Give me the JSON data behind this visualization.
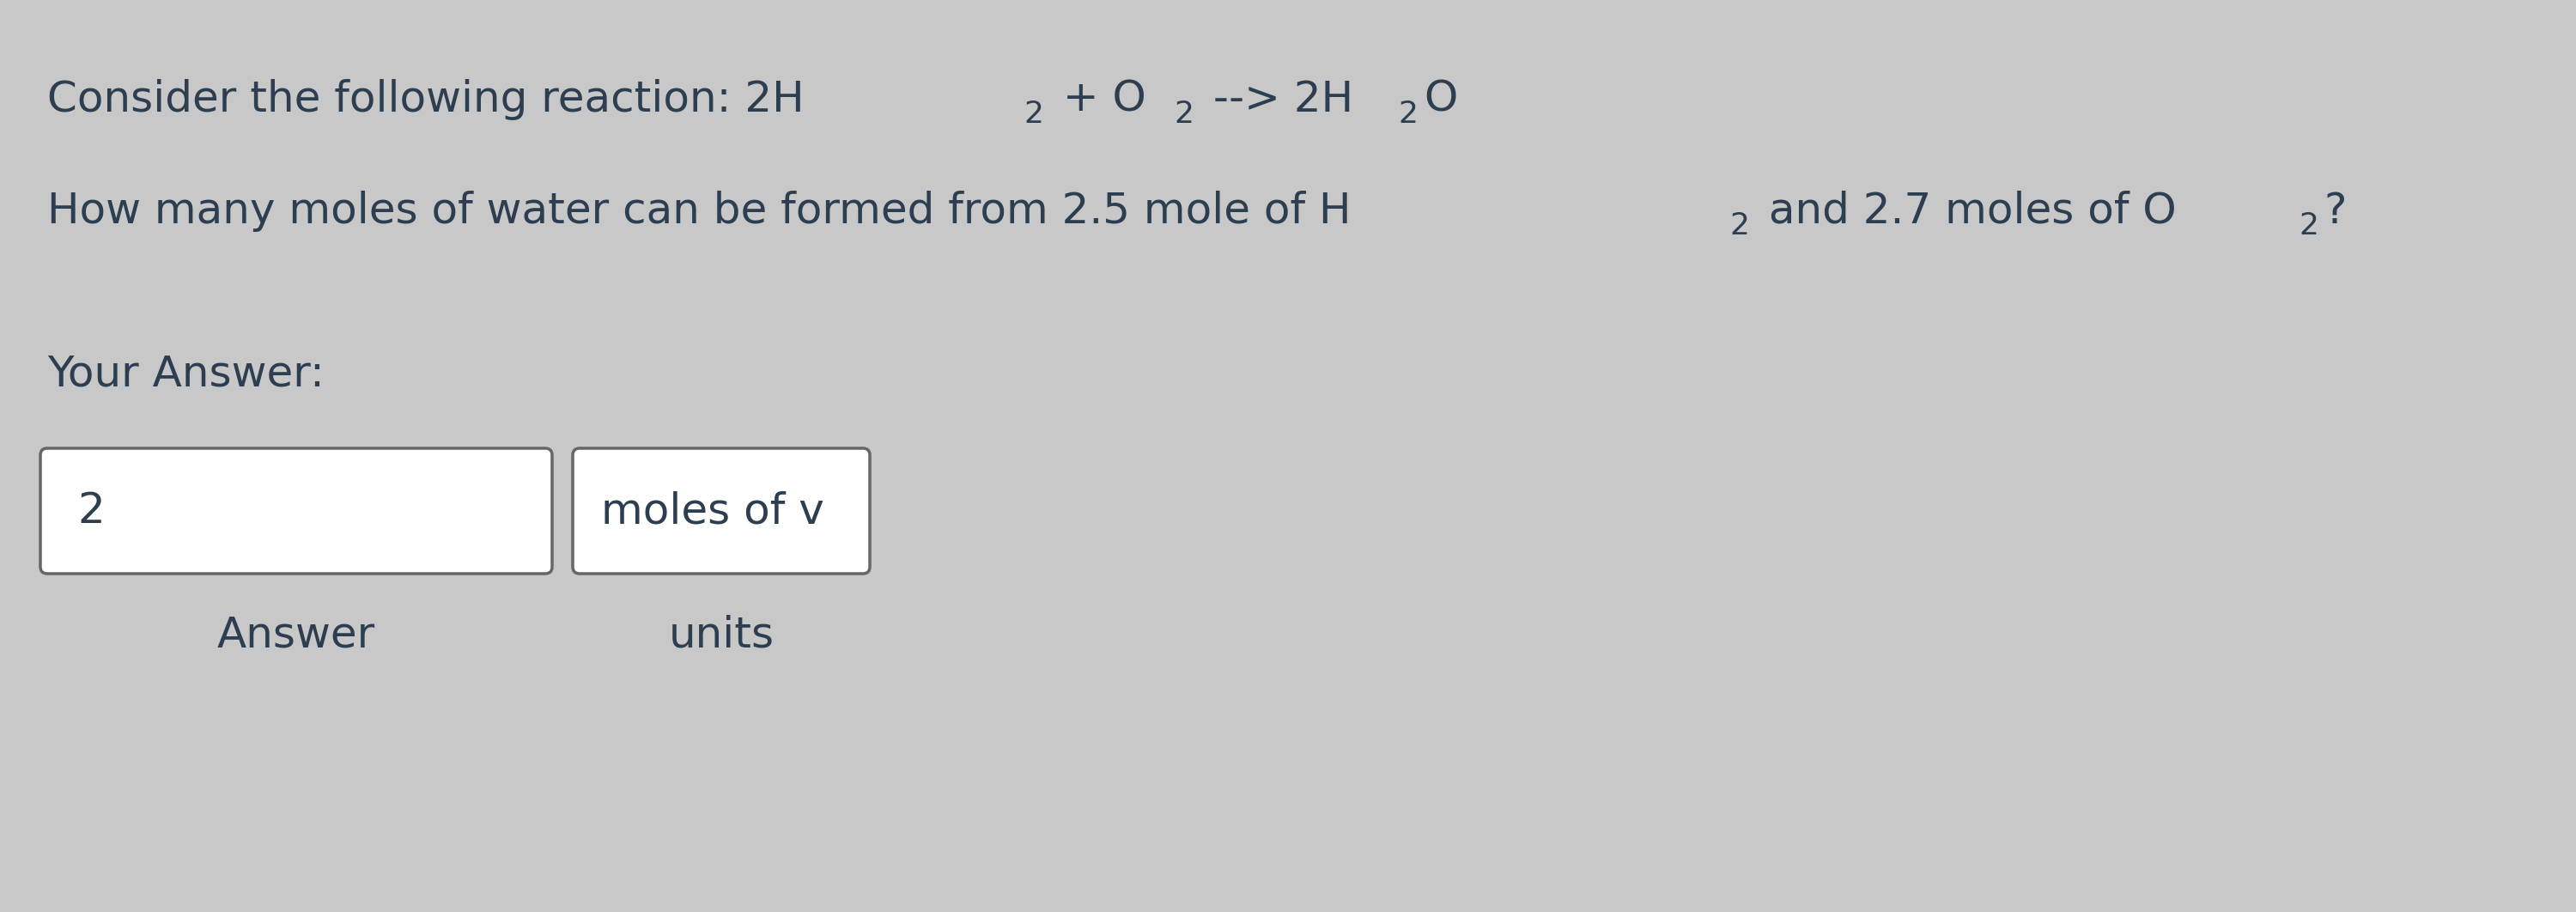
{
  "background_color": "#c8c8c8",
  "text_color": "#2c3e50",
  "box_color": "#ffffff",
  "box_edge_color": "#666666",
  "font_size_main": 36,
  "font_size_sub": 26,
  "line1_parts": [
    [
      "Consider the following reaction: 2H",
      false
    ],
    [
      "2",
      true
    ],
    [
      " + O",
      false
    ],
    [
      "2",
      true
    ],
    [
      " --> 2H",
      false
    ],
    [
      "2",
      true
    ],
    [
      "O",
      false
    ]
  ],
  "line2_parts": [
    [
      "How many moles of water can be formed from 2.5 mole of H",
      false
    ],
    [
      "2",
      true
    ],
    [
      " and 2.7 moles of O",
      false
    ],
    [
      "2",
      true
    ],
    [
      "?",
      false
    ]
  ],
  "your_answer_label": "Your Answer:",
  "answer_box_value": "2",
  "units_box_value": "moles of v",
  "answer_label": "Answer",
  "units_label": "units"
}
